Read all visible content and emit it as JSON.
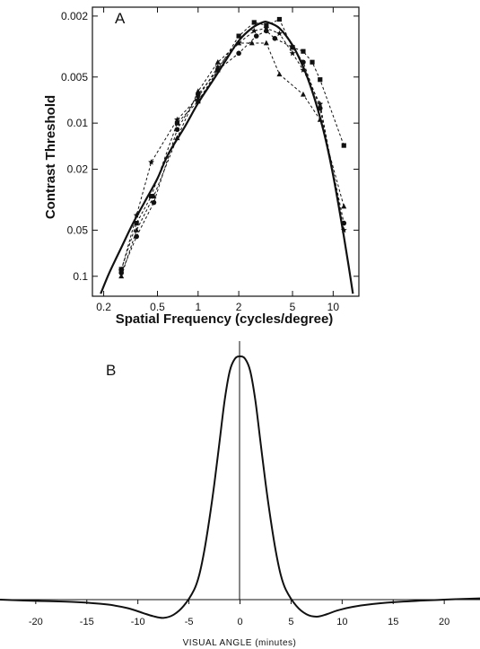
{
  "chart_data": [
    {
      "panel_label": "A",
      "type": "line",
      "xscale": "log",
      "yscale": "log",
      "y_inverted": true,
      "xlabel": "Spatial Frequency (cycles/degree)",
      "ylabel": "Contrast Threshold",
      "xlim": [
        0.165,
        15.5
      ],
      "ylim": [
        0.135,
        0.00175
      ],
      "xticks": [
        0.2,
        0.5,
        1,
        2,
        5,
        10
      ],
      "xtick_labels": [
        "0.2",
        "0.5",
        "1",
        "2",
        "5",
        "10"
      ],
      "yticks": [
        0.002,
        0.005,
        0.01,
        0.02,
        0.05,
        0.1
      ],
      "ytick_labels": [
        "0.002",
        "0.005",
        "0.01",
        "0.02",
        "0.05",
        "0.1"
      ],
      "grid": false,
      "series": [
        {
          "style": "solid",
          "x": [
            0.19,
            0.22,
            0.27,
            0.33,
            0.4,
            0.5,
            0.6,
            0.8,
            1.0,
            1.3,
            1.6,
            2.0,
            2.5,
            3.0,
            3.3,
            4.0,
            5.0,
            6.0,
            7.0,
            8.0,
            9.0,
            10.0,
            11.0,
            12.0,
            13.0,
            14.0
          ],
          "y": [
            0.13,
            0.095,
            0.065,
            0.045,
            0.033,
            0.023,
            0.016,
            0.0105,
            0.0074,
            0.0052,
            0.0039,
            0.0029,
            0.0024,
            0.0022,
            0.0022,
            0.0024,
            0.0031,
            0.0043,
            0.0062,
            0.0092,
            0.014,
            0.022,
            0.035,
            0.055,
            0.085,
            0.13
          ]
        },
        {
          "style": "dashed",
          "marker": "square",
          "x": [
            0.27,
            0.35,
            0.45,
            0.7,
            1.0,
            1.4,
            2.0,
            2.6,
            3.2,
            4.0,
            5.0,
            6.0,
            7.0,
            8.0,
            12.0
          ],
          "y": [
            0.09,
            0.045,
            0.03,
            0.01,
            0.0072,
            0.0045,
            0.0027,
            0.0022,
            0.0023,
            0.0021,
            0.0032,
            0.0034,
            0.004,
            0.0052,
            0.014
          ]
        },
        {
          "style": "dashed",
          "marker": "circle",
          "x": [
            0.27,
            0.35,
            0.47,
            0.7,
            1.0,
            1.4,
            2.0,
            2.7,
            3.2,
            3.7,
            5.0,
            6.0,
            8.0,
            12.0
          ],
          "y": [
            0.095,
            0.055,
            0.033,
            0.011,
            0.0065,
            0.0045,
            0.0035,
            0.0027,
            0.0025,
            0.0028,
            0.0032,
            0.004,
            0.008,
            0.045
          ]
        },
        {
          "style": "dashed",
          "marker": "triangle",
          "x": [
            0.27,
            0.35,
            0.47,
            0.7,
            1.0,
            1.4,
            2.0,
            2.5,
            3.2,
            4.0,
            6.0,
            8.0,
            12.0
          ],
          "y": [
            0.1,
            0.05,
            0.03,
            0.0125,
            0.0062,
            0.004,
            0.003,
            0.003,
            0.003,
            0.0048,
            0.0065,
            0.0095,
            0.035
          ]
        },
        {
          "style": "dashed",
          "marker": "star",
          "x": [
            0.27,
            0.35,
            0.45,
            0.7,
            1.0,
            1.4,
            2.0,
            2.6,
            3.2,
            4.0,
            5.0,
            6.0,
            8.0,
            12.0
          ],
          "y": [
            0.092,
            0.04,
            0.018,
            0.0095,
            0.0068,
            0.0043,
            0.003,
            0.0025,
            0.0024,
            0.0026,
            0.0035,
            0.0045,
            0.0075,
            0.05
          ]
        }
      ]
    },
    {
      "panel_label": "B",
      "type": "line",
      "xlabel": "VISUAL ANGLE  (minutes)",
      "ylabel": "",
      "xlim": [
        -23.5,
        23.5
      ],
      "ylim": [
        -0.09,
        1.05
      ],
      "xticks": [
        -20,
        -15,
        -10,
        -5,
        0,
        5,
        10,
        15,
        20
      ],
      "xtick_labels": [
        "-20",
        "-15",
        "-10",
        "-5",
        "0",
        "5",
        "10",
        "15",
        "20"
      ],
      "grid": false,
      "series": [
        {
          "style": "solid",
          "x": [
            -23.5,
            -20,
            -16,
            -13,
            -11,
            -9.5,
            -8.5,
            -7.5,
            -6.5,
            -5.5,
            -4.5,
            -4.0,
            -3.5,
            -3.0,
            -2.5,
            -2.0,
            -1.5,
            -1.0,
            -0.5,
            0,
            0.5,
            1.0,
            1.5,
            2.0,
            2.5,
            3.0,
            3.5,
            4.0,
            4.5,
            5.5,
            6.5,
            7.5,
            8.5,
            9.5,
            11,
            13,
            16,
            20,
            23.5
          ],
          "y": [
            0.0,
            -0.005,
            -0.01,
            -0.02,
            -0.035,
            -0.055,
            -0.068,
            -0.075,
            -0.062,
            -0.025,
            0.04,
            0.1,
            0.2,
            0.33,
            0.48,
            0.65,
            0.82,
            0.94,
            0.99,
            1.0,
            0.99,
            0.94,
            0.82,
            0.65,
            0.48,
            0.33,
            0.2,
            0.1,
            0.04,
            -0.025,
            -0.06,
            -0.07,
            -0.06,
            -0.045,
            -0.03,
            -0.018,
            -0.008,
            0.0,
            0.005
          ]
        }
      ]
    }
  ]
}
